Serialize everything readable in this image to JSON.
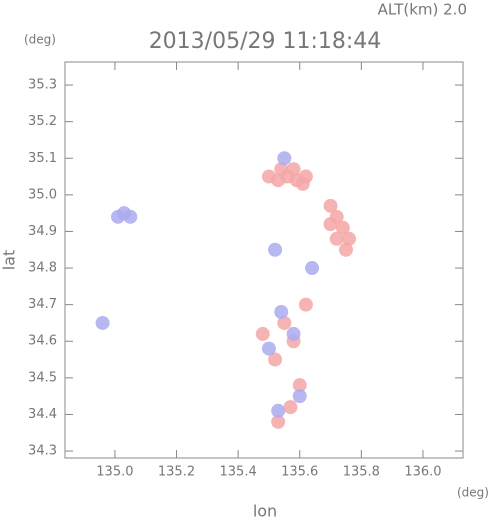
{
  "chart_data": {
    "type": "scatter",
    "title": "2013/05/29 11:18:44",
    "altitude": "ALT(km)  2.0",
    "x_unit": "(deg)",
    "y_unit": "(deg)",
    "x_label": "lon",
    "y_label": "lat",
    "xlim": [
      134.838,
      136.13
    ],
    "ylim": [
      34.281,
      35.363
    ],
    "xticks": [
      {
        "value": 135.0,
        "label": "135.0"
      },
      {
        "value": 135.2,
        "label": "135.2"
      },
      {
        "value": 135.4,
        "label": "135.4"
      },
      {
        "value": 135.6,
        "label": "135.6"
      },
      {
        "value": 135.8,
        "label": "135.8"
      },
      {
        "value": 136.0,
        "label": "136.0"
      }
    ],
    "yticks": [
      {
        "value": 34.3,
        "label": "34.3"
      },
      {
        "value": 34.4,
        "label": "34.4"
      },
      {
        "value": 34.5,
        "label": "34.5"
      },
      {
        "value": 34.6,
        "label": "34.6"
      },
      {
        "value": 34.7,
        "label": "34.7"
      },
      {
        "value": 34.8,
        "label": "34.8"
      },
      {
        "value": 34.9,
        "label": "34.9"
      },
      {
        "value": 35.0,
        "label": "35.0"
      },
      {
        "value": 35.1,
        "label": "35.1"
      },
      {
        "value": 35.2,
        "label": "35.2"
      },
      {
        "value": 35.3,
        "label": "35.3"
      }
    ],
    "series": [
      {
        "color": "#f4a6a6",
        "x": [
          135.5,
          135.53,
          135.56,
          135.59,
          135.62,
          135.54,
          135.58,
          135.61,
          135.7,
          135.72,
          135.74,
          135.76,
          135.75,
          135.72,
          135.7,
          135.55,
          135.58,
          135.52,
          135.6,
          135.57,
          135.53,
          135.62,
          135.48
        ],
        "values": [
          35.05,
          35.04,
          35.05,
          35.04,
          35.05,
          35.07,
          35.07,
          35.03,
          34.97,
          34.94,
          34.91,
          34.88,
          34.85,
          34.88,
          34.92,
          34.65,
          34.6,
          34.55,
          34.48,
          34.42,
          34.38,
          34.7,
          34.62
        ]
      },
      {
        "color": "#aaaaf0",
        "x": [
          135.03,
          135.01,
          135.05,
          134.96,
          135.55,
          135.58,
          135.54,
          135.6,
          135.53,
          135.5,
          135.64,
          135.52
        ],
        "values": [
          34.95,
          34.94,
          34.94,
          34.65,
          35.1,
          34.62,
          34.68,
          34.45,
          34.41,
          34.58,
          34.8,
          34.85
        ]
      }
    ]
  }
}
